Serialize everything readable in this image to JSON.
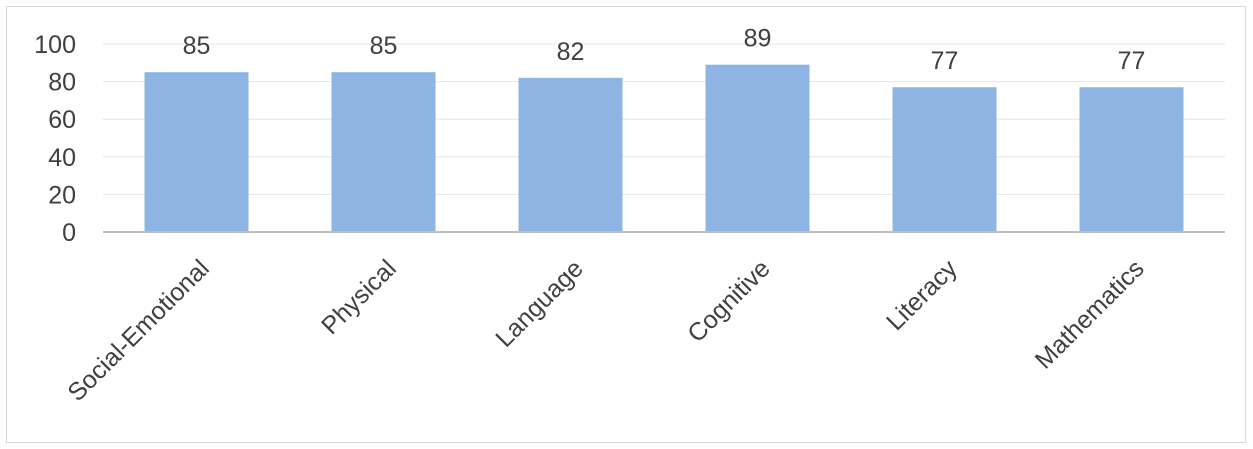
{
  "chart_data": {
    "type": "bar",
    "categories": [
      "Social-Emotional",
      "Physical",
      "Language",
      "Cognitive",
      "Literacy",
      "Mathematics"
    ],
    "values": [
      85,
      85,
      82,
      89,
      77,
      77
    ],
    "title": "",
    "xlabel": "",
    "ylabel": "",
    "ylim": [
      0,
      100
    ],
    "yticks": [
      "0",
      "20",
      "40",
      "60",
      "80",
      "100"
    ],
    "grid": true,
    "legend": "none",
    "data_labels": [
      "85",
      "85",
      "82",
      "89",
      "77",
      "77"
    ]
  },
  "colors": {
    "bar": "#8db4e2",
    "grid": "#e6e6e6",
    "axis": "#bfbfbf",
    "text": "#404040"
  }
}
